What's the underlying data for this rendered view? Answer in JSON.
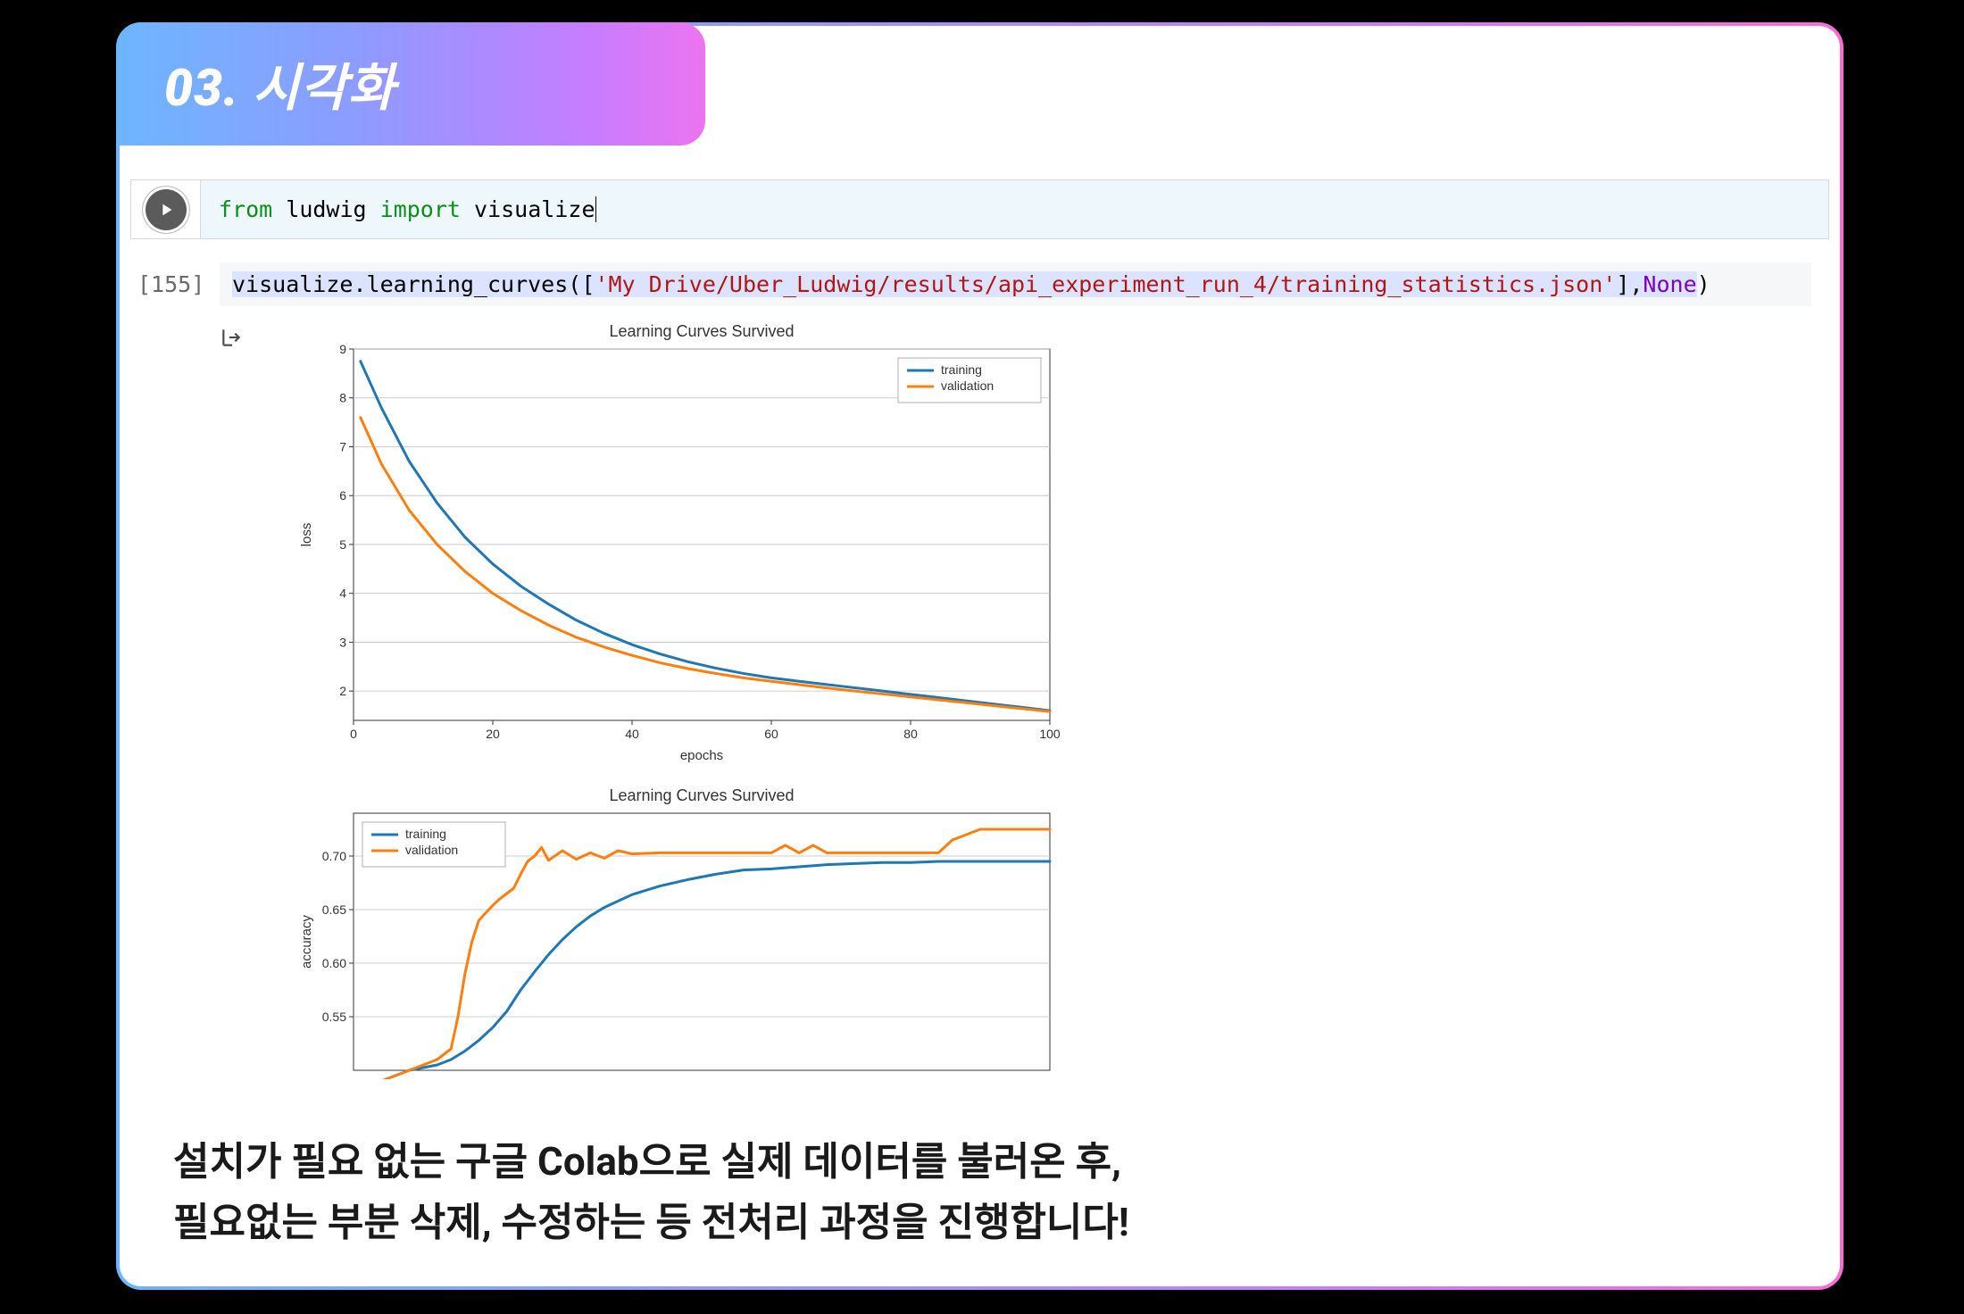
{
  "header": {
    "title": "03. 시각화"
  },
  "cell1": {
    "code_tokens": {
      "from": "from",
      "module": "ludwig",
      "import": "import",
      "target": "visualize"
    }
  },
  "cell2": {
    "exec_count": "[155]",
    "code_tokens": {
      "call": "visualize.learning_curves",
      "open": "([",
      "str": "'My Drive/Uber_Ludwig/results/api_experiment_run_4/training_statistics.json'",
      "close": "],",
      "none": "None",
      "paren": ")"
    }
  },
  "output_icon": "[→",
  "chart1": {
    "type": "line",
    "title": "Learning Curves Survived",
    "title_fontsize": 18,
    "xlabel": "epochs",
    "ylabel": "loss",
    "label_fontsize": 15,
    "xlim": [
      0,
      100
    ],
    "ylim": [
      1.4,
      9
    ],
    "xticks": [
      0,
      20,
      40,
      60,
      80,
      100
    ],
    "yticks": [
      2,
      3,
      4,
      5,
      6,
      7,
      8,
      9
    ],
    "background_color": "#ffffff",
    "grid_color": "#bfbfbf",
    "axis_color": "#333333",
    "line_width": 3,
    "series": [
      {
        "name": "training",
        "color": "#1f77b4",
        "x": [
          1,
          4,
          8,
          12,
          16,
          20,
          24,
          28,
          32,
          36,
          40,
          44,
          48,
          52,
          56,
          60,
          64,
          70,
          76,
          82,
          88,
          94,
          100
        ],
        "y": [
          8.75,
          7.8,
          6.7,
          5.85,
          5.15,
          4.6,
          4.15,
          3.78,
          3.45,
          3.18,
          2.95,
          2.76,
          2.6,
          2.47,
          2.36,
          2.27,
          2.2,
          2.1,
          2.0,
          1.9,
          1.8,
          1.7,
          1.6
        ]
      },
      {
        "name": "validation",
        "color": "#ff7f0e",
        "x": [
          1,
          4,
          8,
          12,
          16,
          20,
          24,
          28,
          32,
          36,
          40,
          44,
          48,
          52,
          56,
          60,
          64,
          70,
          76,
          82,
          88,
          94,
          100
        ],
        "y": [
          7.6,
          6.65,
          5.7,
          5.0,
          4.45,
          4.0,
          3.65,
          3.35,
          3.1,
          2.9,
          2.73,
          2.58,
          2.46,
          2.36,
          2.27,
          2.2,
          2.13,
          2.03,
          1.94,
          1.85,
          1.76,
          1.67,
          1.58
        ]
      }
    ],
    "legend": {
      "position": "upper-right",
      "labels": [
        "training",
        "validation"
      ]
    }
  },
  "chart2": {
    "type": "line",
    "title": "Learning Curves Survived",
    "title_fontsize": 18,
    "xlabel": "epochs",
    "ylabel": "accuracy",
    "label_fontsize": 15,
    "xlim": [
      0,
      100
    ],
    "ylim": [
      0.5,
      0.74
    ],
    "xticks": [
      0,
      20,
      40,
      60,
      80,
      100
    ],
    "yticks": [
      0.55,
      0.6,
      0.65,
      0.7
    ],
    "background_color": "#ffffff",
    "grid_color": "#bfbfbf",
    "axis_color": "#333333",
    "line_width": 3,
    "series": [
      {
        "name": "training",
        "color": "#1f77b4",
        "x": [
          1,
          4,
          8,
          12,
          14,
          16,
          18,
          20,
          22,
          24,
          26,
          28,
          30,
          32,
          34,
          36,
          38,
          40,
          44,
          48,
          52,
          56,
          60,
          64,
          68,
          72,
          76,
          80,
          84,
          88,
          92,
          96,
          100
        ],
        "y": [
          0.48,
          0.49,
          0.5,
          0.505,
          0.51,
          0.518,
          0.528,
          0.54,
          0.555,
          0.575,
          0.592,
          0.608,
          0.622,
          0.634,
          0.644,
          0.652,
          0.658,
          0.664,
          0.672,
          0.678,
          0.683,
          0.687,
          0.688,
          0.69,
          0.692,
          0.693,
          0.694,
          0.694,
          0.695,
          0.695,
          0.695,
          0.695,
          0.695
        ]
      },
      {
        "name": "validation",
        "color": "#ff7f0e",
        "x": [
          1,
          4,
          8,
          12,
          14,
          15,
          16,
          17,
          18,
          19,
          20,
          21,
          22,
          23,
          24,
          25,
          26,
          27,
          28,
          30,
          32,
          34,
          36,
          38,
          40,
          44,
          48,
          52,
          56,
          60,
          62,
          64,
          66,
          68,
          72,
          76,
          80,
          84,
          86,
          88,
          90,
          92,
          96,
          100
        ],
        "y": [
          0.48,
          0.49,
          0.5,
          0.51,
          0.52,
          0.55,
          0.59,
          0.62,
          0.64,
          0.647,
          0.654,
          0.66,
          0.665,
          0.67,
          0.683,
          0.695,
          0.7,
          0.708,
          0.696,
          0.705,
          0.697,
          0.703,
          0.698,
          0.705,
          0.702,
          0.703,
          0.703,
          0.703,
          0.703,
          0.703,
          0.71,
          0.703,
          0.71,
          0.703,
          0.703,
          0.703,
          0.703,
          0.703,
          0.715,
          0.72,
          0.725,
          0.725,
          0.725,
          0.725
        ]
      }
    ],
    "legend": {
      "position": "upper-left",
      "labels": [
        "training",
        "validation"
      ]
    }
  },
  "footer": {
    "line1": "설치가 필요 없는 구글 Colab으로 실제 데이터를 불러온 후,",
    "line2": "필요없는 부분 삭제, 수정하는 등 전처리 과정을 진행합니다!"
  },
  "colors": {
    "page_bg": "#000000",
    "card_bg": "#ffffff",
    "gradient_start": "#6db6ff",
    "gradient_end": "#ff6bd6",
    "code1_bg": "#eef7fb",
    "code2_bg": "#f6f7f8",
    "keyword": "#0a8f1b",
    "string": "#b31515",
    "none_kw": "#7a00c4",
    "highlight_bg": "#dbe3ff"
  }
}
